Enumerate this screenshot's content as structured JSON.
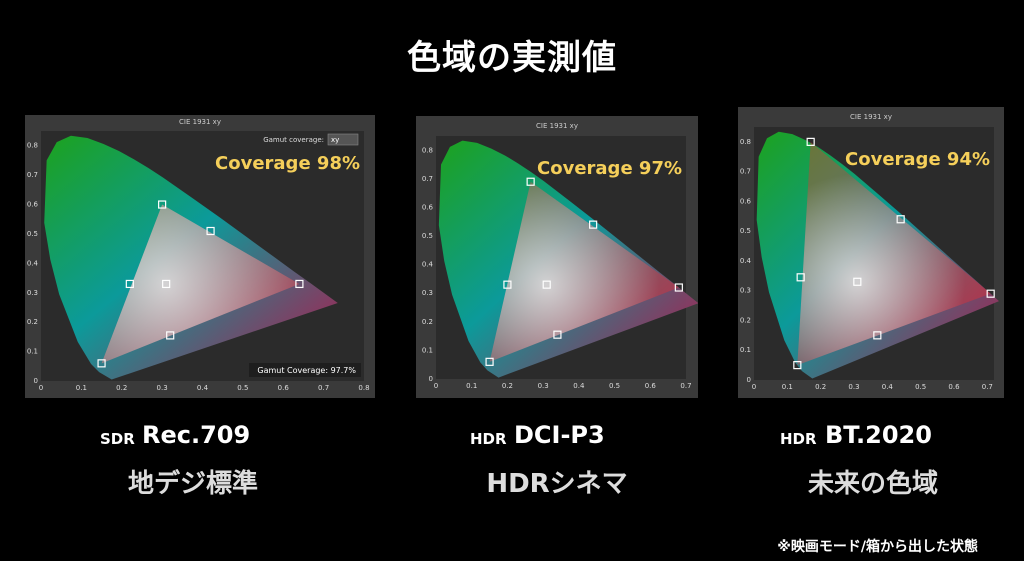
{
  "page": {
    "title": "色域の実測値",
    "footnote": "※映画モード/箱から出した状態"
  },
  "colors": {
    "coverage_text": "#f5cf5a",
    "panel_bg": "#3a3a3a",
    "plot_bg": "#2b2b2b"
  },
  "chart_data": [
    {
      "type": "scatter",
      "title": "CIE 1931 xy",
      "gamut_label": "Gamut coverage:",
      "gamut_select": "xy",
      "coverage_text": "Coverage 98%",
      "footer_text": "Gamut Coverage:  97.7%",
      "xlim": [
        0,
        0.8
      ],
      "ylim": [
        0,
        0.85
      ],
      "x_ticks": [
        "0",
        "0.1",
        "0.2",
        "0.3",
        "0.4",
        "0.5",
        "0.6",
        "0.7",
        "0.8"
      ],
      "y_ticks": [
        "0",
        "0.1",
        "0.2",
        "0.3",
        "0.4",
        "0.5",
        "0.6",
        "0.7",
        "0.8"
      ],
      "points": [
        {
          "x": 0.3,
          "y": 0.6
        },
        {
          "x": 0.42,
          "y": 0.51
        },
        {
          "x": 0.64,
          "y": 0.33
        },
        {
          "x": 0.15,
          "y": 0.06
        },
        {
          "x": 0.22,
          "y": 0.33
        },
        {
          "x": 0.31,
          "y": 0.33
        },
        {
          "x": 0.32,
          "y": 0.155
        }
      ],
      "label_badge": "SDR",
      "label_name": "Rec.709",
      "label_desc": "地デジ標準"
    },
    {
      "type": "scatter",
      "title": "CIE 1931 xy",
      "coverage_text": "Coverage 97%",
      "xlim": [
        0,
        0.7
      ],
      "ylim": [
        0,
        0.85
      ],
      "x_ticks": [
        "0",
        "0.1",
        "0.2",
        "0.3",
        "0.4",
        "0.5",
        "0.6",
        "0.7"
      ],
      "y_ticks": [
        "0",
        "0.1",
        "0.2",
        "0.3",
        "0.4",
        "0.5",
        "0.6",
        "0.7",
        "0.8"
      ],
      "points": [
        {
          "x": 0.265,
          "y": 0.69
        },
        {
          "x": 0.44,
          "y": 0.54
        },
        {
          "x": 0.68,
          "y": 0.32
        },
        {
          "x": 0.15,
          "y": 0.06
        },
        {
          "x": 0.2,
          "y": 0.33
        },
        {
          "x": 0.31,
          "y": 0.33
        },
        {
          "x": 0.34,
          "y": 0.155
        }
      ],
      "label_badge": "HDR",
      "label_name": "DCI-P3",
      "label_desc": "HDRシネマ"
    },
    {
      "type": "scatter",
      "title": "CIE 1931 xy",
      "coverage_text": "Coverage 94%",
      "xlim": [
        0,
        0.72
      ],
      "ylim": [
        0,
        0.85
      ],
      "x_ticks": [
        "0",
        "0.1",
        "0.2",
        "0.3",
        "0.4",
        "0.5",
        "0.6",
        "0.7"
      ],
      "y_ticks": [
        "0",
        "0.1",
        "0.2",
        "0.3",
        "0.4",
        "0.5",
        "0.6",
        "0.7",
        "0.8"
      ],
      "points": [
        {
          "x": 0.17,
          "y": 0.8
        },
        {
          "x": 0.44,
          "y": 0.54
        },
        {
          "x": 0.71,
          "y": 0.29
        },
        {
          "x": 0.13,
          "y": 0.05
        },
        {
          "x": 0.14,
          "y": 0.345
        },
        {
          "x": 0.31,
          "y": 0.33
        },
        {
          "x": 0.37,
          "y": 0.15
        }
      ],
      "label_badge": "HDR",
      "label_name": "BT.2020",
      "label_desc": "未来の色域"
    }
  ]
}
